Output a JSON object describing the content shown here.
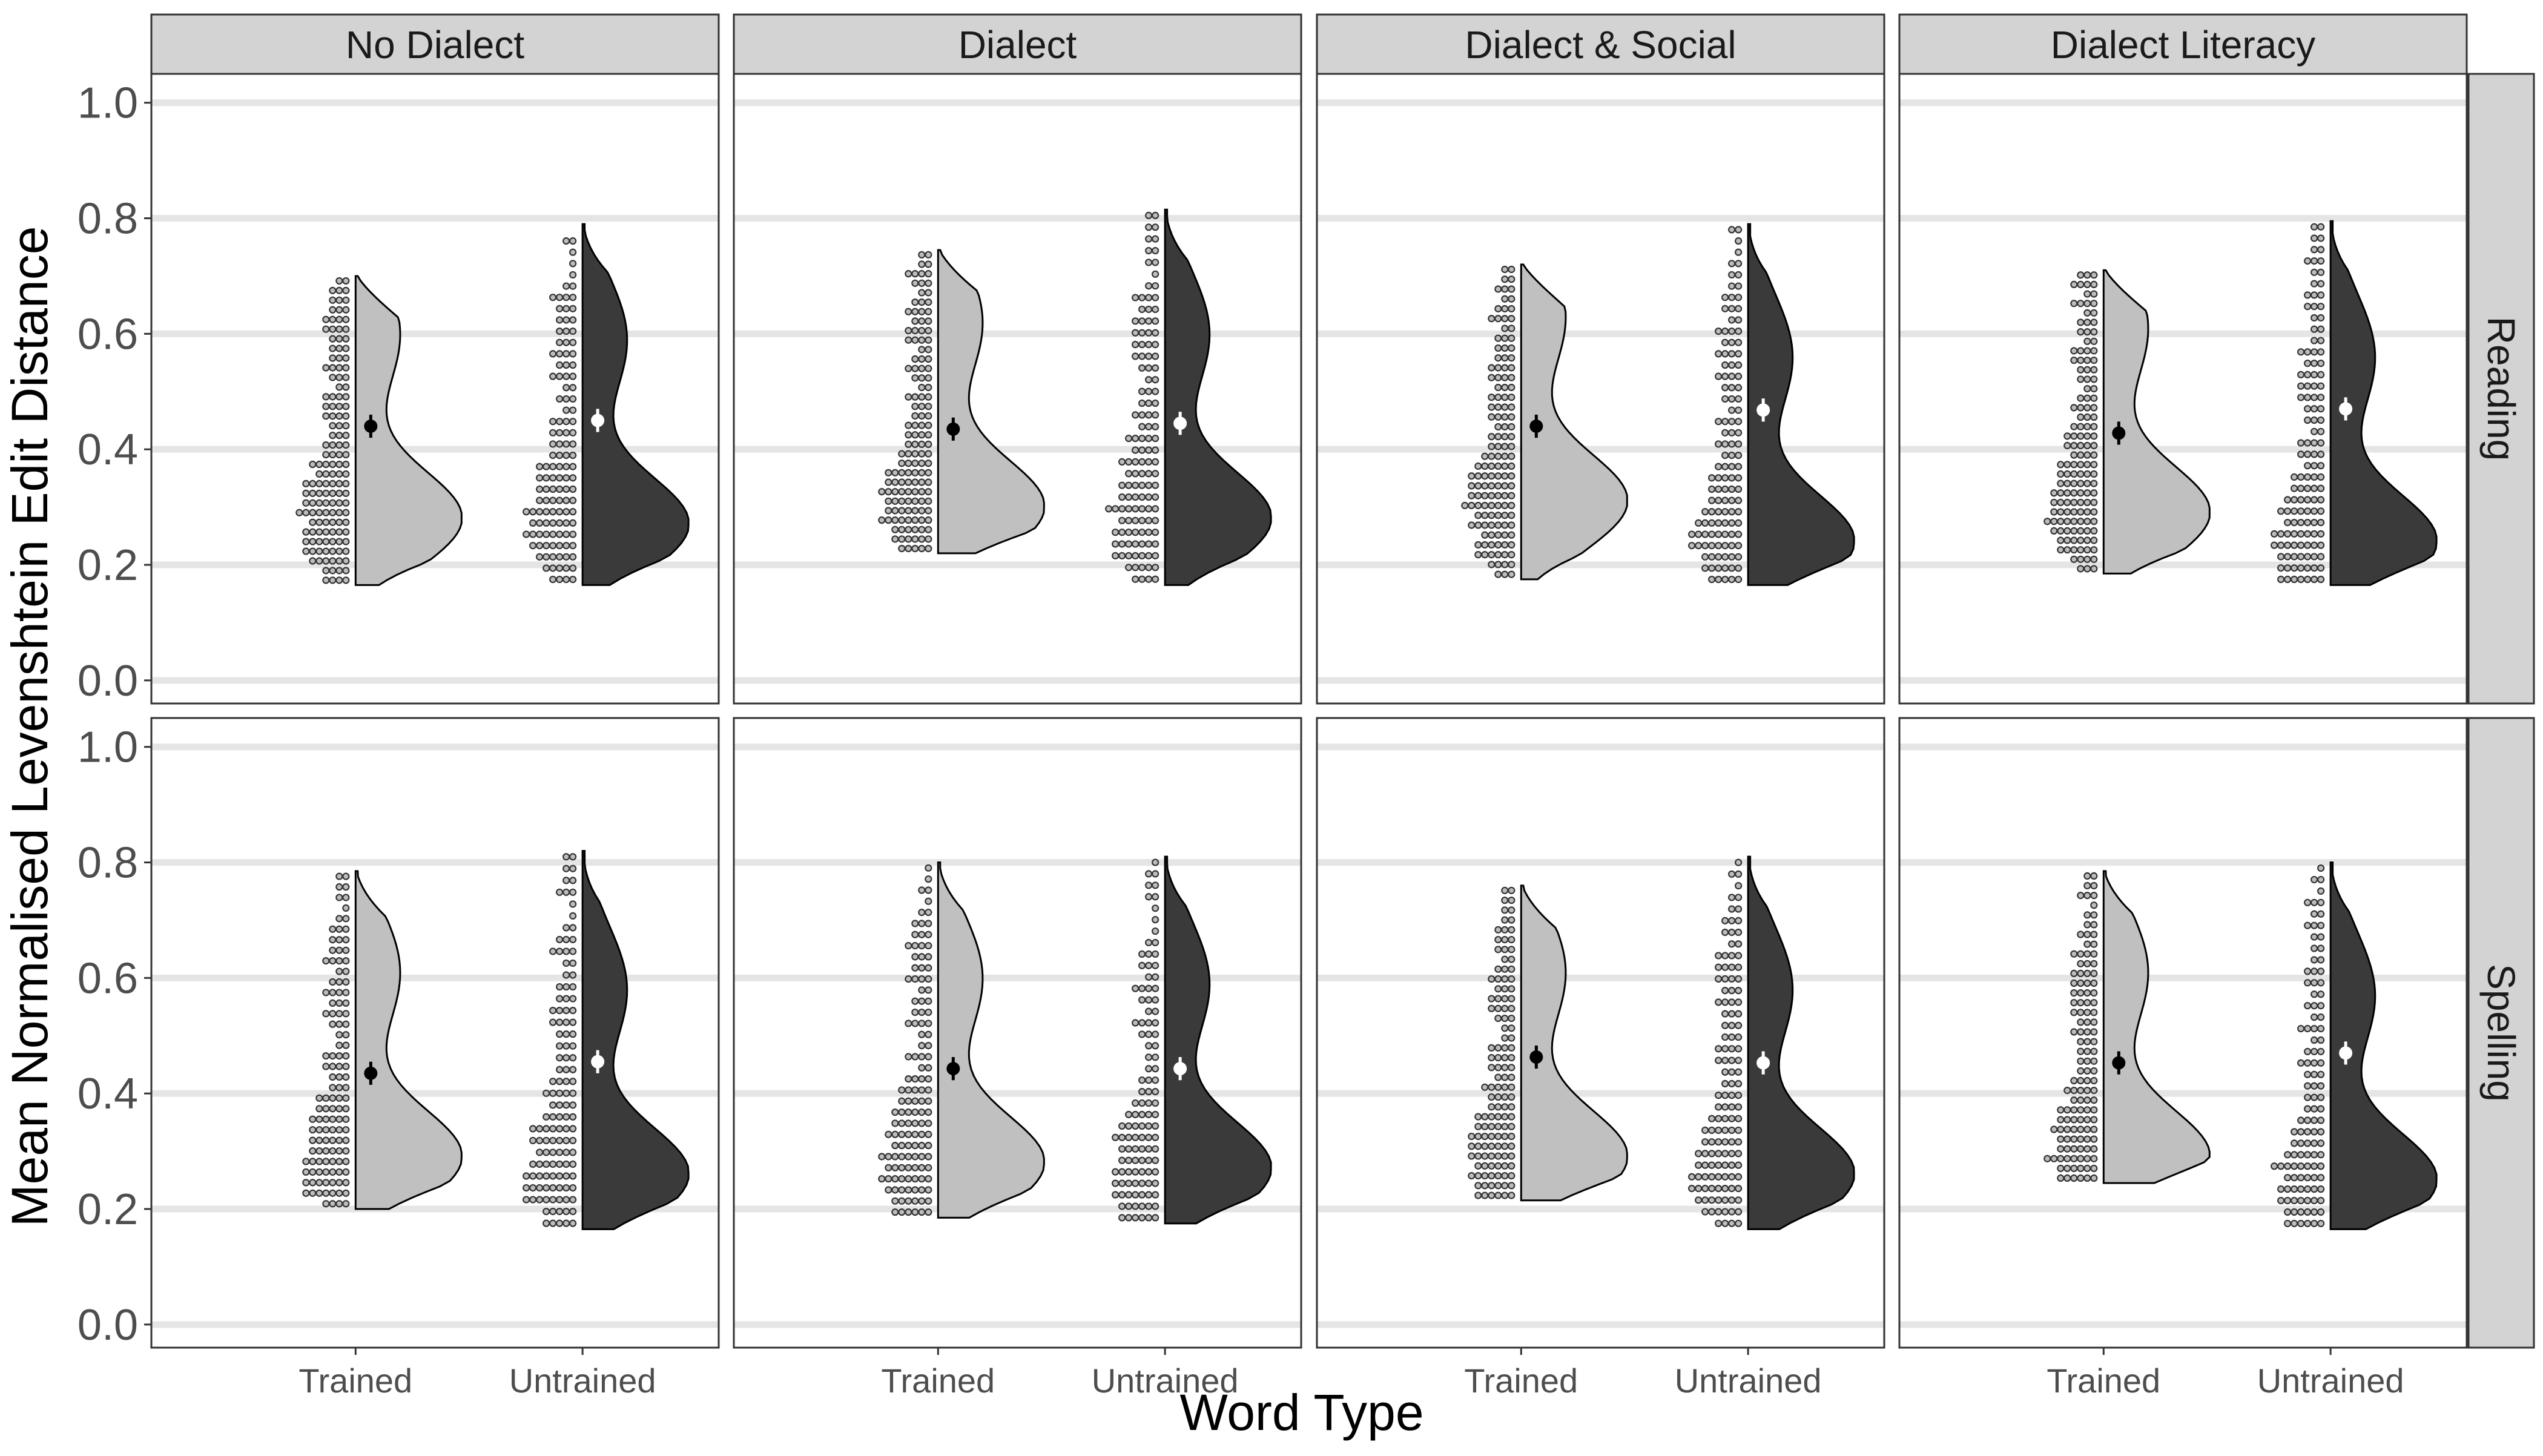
{
  "chart_data": {
    "type": "raincloud",
    "xlabel": "Word Type",
    "ylabel": "Mean Normalised Levenshtein Edit Distance",
    "ylim": [
      -0.04,
      1.05
    ],
    "yticks": [
      "0.0",
      "0.2",
      "0.4",
      "0.6",
      "0.8",
      "1.0"
    ],
    "categories": [
      "Trained",
      "Untrained"
    ],
    "columns": [
      "No Dialect",
      "Dialect",
      "Dialect & Social",
      "Dialect Literacy"
    ],
    "rows": [
      "Reading",
      "Spelling"
    ],
    "grid": true,
    "legend": "none",
    "colors": {
      "trained_fill": "#c0c0c0",
      "untrained_fill": "#3a3a3a",
      "trained_point": "#000000",
      "untrained_point": "#ffffff",
      "strip_bg": "#d3d3d3",
      "grid": "#e5e5e5"
    },
    "summary": {
      "Reading": {
        "No Dialect": {
          "Trained": 0.44,
          "Untrained": 0.45
        },
        "Dialect": {
          "Trained": 0.435,
          "Untrained": 0.445
        },
        "Dialect & Social": {
          "Trained": 0.44,
          "Untrained": 0.468
        },
        "Dialect Literacy": {
          "Trained": 0.428,
          "Untrained": 0.47
        }
      },
      "Spelling": {
        "No Dialect": {
          "Trained": 0.435,
          "Untrained": 0.455
        },
        "Dialect": {
          "Trained": 0.443,
          "Untrained": 0.443
        },
        "Dialect & Social": {
          "Trained": 0.463,
          "Untrained": 0.453
        },
        "Dialect Literacy": {
          "Trained": 0.453,
          "Untrained": 0.47
        }
      }
    },
    "range": {
      "Reading": {
        "No Dialect": {
          "Trained": [
            0.165,
            0.7
          ],
          "Untrained": [
            0.165,
            0.79
          ]
        },
        "Dialect": {
          "Trained": [
            0.22,
            0.745
          ],
          "Untrained": [
            0.165,
            0.815
          ]
        },
        "Dialect & Social": {
          "Trained": [
            0.175,
            0.72
          ],
          "Untrained": [
            0.165,
            0.79
          ]
        },
        "Dialect Literacy": {
          "Trained": [
            0.185,
            0.71
          ],
          "Untrained": [
            0.165,
            0.795
          ]
        }
      },
      "Spelling": {
        "No Dialect": {
          "Trained": [
            0.2,
            0.785
          ],
          "Untrained": [
            0.165,
            0.82
          ]
        },
        "Dialect": {
          "Trained": [
            0.185,
            0.8
          ],
          "Untrained": [
            0.175,
            0.81
          ]
        },
        "Dialect & Social": {
          "Trained": [
            0.215,
            0.76
          ],
          "Untrained": [
            0.165,
            0.81
          ]
        },
        "Dialect Literacy": {
          "Trained": [
            0.245,
            0.785
          ],
          "Untrained": [
            0.165,
            0.8
          ]
        }
      }
    },
    "density_mode": {
      "Reading": {
        "No Dialect": {
          "Trained": 0.28,
          "Untrained": 0.27
        },
        "Dialect": {
          "Trained": 0.3,
          "Untrained": 0.28
        },
        "Dialect & Social": {
          "Trained": 0.31,
          "Untrained": 0.24
        },
        "Dialect Literacy": {
          "Trained": 0.29,
          "Untrained": 0.24
        }
      },
      "Spelling": {
        "No Dialect": {
          "Trained": 0.29,
          "Untrained": 0.26
        },
        "Dialect": {
          "Trained": 0.28,
          "Untrained": 0.27
        },
        "Dialect & Social": {
          "Trained": 0.29,
          "Untrained": 0.26
        },
        "Dialect Literacy": {
          "Trained": 0.29,
          "Untrained": 0.25
        }
      }
    }
  }
}
